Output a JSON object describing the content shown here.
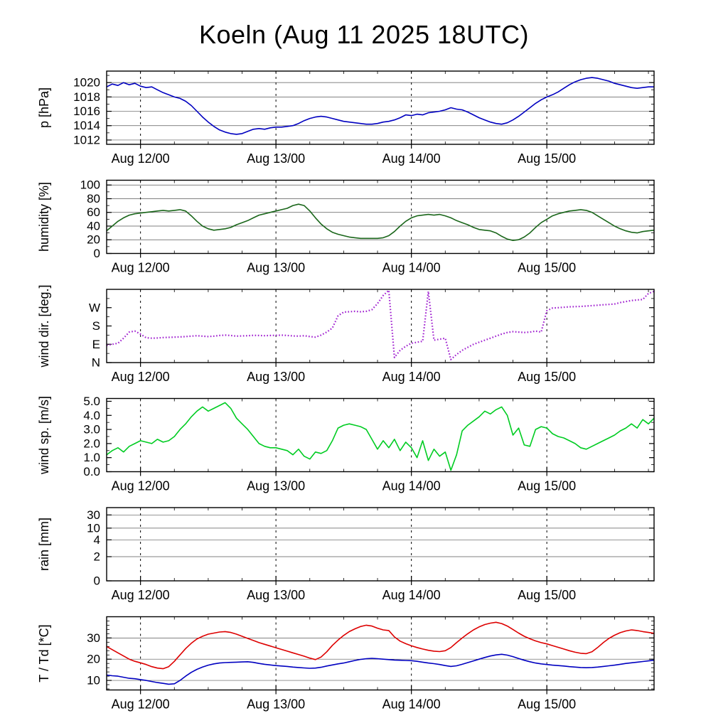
{
  "title": "Koeln (Aug 11 2025 18UTC)",
  "x_axis": {
    "xlim": [
      0,
      97
    ],
    "minor_step": 6,
    "ticks": [
      {
        "v": 6,
        "label": "Aug 12/00"
      },
      {
        "v": 30,
        "label": "Aug 13/00"
      },
      {
        "v": 54,
        "label": "Aug 14/00"
      },
      {
        "v": 78,
        "label": "Aug 15/00"
      }
    ]
  },
  "chart_data": [
    {
      "type": "line",
      "name": "pressure",
      "ylabel": "p [hPa]",
      "ylim": [
        1011.4,
        1021.6
      ],
      "minor_y_step": 1,
      "grid": true,
      "yticks": [
        {
          "v": 1012,
          "label": "1012"
        },
        {
          "v": 1014,
          "label": "1014"
        },
        {
          "v": 1016,
          "label": "1016"
        },
        {
          "v": 1018,
          "label": "1018"
        },
        {
          "v": 1020,
          "label": "1020"
        }
      ],
      "series": [
        {
          "name": "pressure",
          "color": "#0000c0",
          "style": "line",
          "values": [
            1019.4,
            1019.8,
            1019.6,
            1020.0,
            1019.7,
            1019.9,
            1019.5,
            1019.3,
            1019.4,
            1019.0,
            1018.6,
            1018.3,
            1018.0,
            1017.8,
            1017.4,
            1016.8,
            1016.0,
            1015.2,
            1014.5,
            1013.9,
            1013.4,
            1013.1,
            1012.9,
            1012.8,
            1012.9,
            1013.2,
            1013.5,
            1013.6,
            1013.5,
            1013.7,
            1013.8,
            1013.8,
            1013.9,
            1014.0,
            1014.3,
            1014.7,
            1015.0,
            1015.2,
            1015.3,
            1015.2,
            1015.0,
            1014.8,
            1014.6,
            1014.5,
            1014.4,
            1014.3,
            1014.2,
            1014.2,
            1014.3,
            1014.5,
            1014.6,
            1014.8,
            1015.1,
            1015.5,
            1015.4,
            1015.6,
            1015.5,
            1015.8,
            1015.9,
            1016.0,
            1016.2,
            1016.5,
            1016.3,
            1016.2,
            1015.9,
            1015.5,
            1015.1,
            1014.8,
            1014.5,
            1014.3,
            1014.2,
            1014.4,
            1014.8,
            1015.3,
            1015.9,
            1016.5,
            1017.1,
            1017.6,
            1018.0,
            1018.3,
            1018.7,
            1019.2,
            1019.7,
            1020.1,
            1020.4,
            1020.6,
            1020.7,
            1020.6,
            1020.4,
            1020.2,
            1019.9,
            1019.7,
            1019.5,
            1019.3,
            1019.2,
            1019.3,
            1019.4,
            1019.4
          ]
        }
      ]
    },
    {
      "type": "line",
      "name": "humidity",
      "ylabel": "humidity [%]",
      "ylim": [
        0,
        107
      ],
      "minor_y_step": 10,
      "grid": true,
      "yticks": [
        {
          "v": 0,
          "label": "0"
        },
        {
          "v": 20,
          "label": "20"
        },
        {
          "v": 40,
          "label": "40"
        },
        {
          "v": 60,
          "label": "60"
        },
        {
          "v": 80,
          "label": "80"
        },
        {
          "v": 100,
          "label": "100"
        }
      ],
      "series": [
        {
          "name": "humidity",
          "color": "#1a661a",
          "style": "line",
          "values": [
            33,
            40,
            47,
            52,
            56,
            58,
            59,
            60,
            61,
            62,
            63,
            62,
            63,
            64,
            62,
            55,
            47,
            40,
            36,
            34,
            35,
            36,
            38,
            42,
            45,
            48,
            52,
            56,
            58,
            60,
            62,
            64,
            66,
            70,
            72,
            70,
            62,
            52,
            43,
            36,
            31,
            28,
            26,
            24,
            23,
            22,
            22,
            22,
            22,
            23,
            26,
            32,
            40,
            47,
            52,
            55,
            56,
            57,
            56,
            57,
            55,
            52,
            48,
            45,
            42,
            38,
            35,
            34,
            33,
            30,
            25,
            21,
            19,
            20,
            24,
            30,
            38,
            45,
            50,
            55,
            58,
            60,
            62,
            63,
            64,
            63,
            60,
            55,
            50,
            45,
            40,
            36,
            33,
            31,
            30,
            32,
            33,
            34
          ]
        }
      ]
    },
    {
      "type": "line",
      "name": "wind-direction",
      "ylabel": "wind dir. [deg.]",
      "ylim": [
        0,
        360
      ],
      "minor_y_step": 45,
      "grid": false,
      "yticks": [
        {
          "v": 0,
          "label": "N"
        },
        {
          "v": 90,
          "label": "E"
        },
        {
          "v": 180,
          "label": "S"
        },
        {
          "v": 270,
          "label": "W"
        }
      ],
      "series": [
        {
          "name": "wind_direction",
          "color": "#a020d0",
          "style": "dotted",
          "values": [
            85,
            90,
            95,
            120,
            150,
            155,
            140,
            122,
            120,
            121,
            123,
            124,
            125,
            126,
            128,
            130,
            132,
            130,
            128,
            130,
            133,
            135,
            133,
            130,
            131,
            132,
            134,
            133,
            132,
            133,
            134,
            135,
            133,
            131,
            130,
            132,
            128,
            125,
            135,
            150,
            170,
            230,
            248,
            250,
            252,
            250,
            252,
            260,
            290,
            330,
            355,
            25,
            60,
            80,
            95,
            100,
            105,
            350,
            110,
            115,
            120,
            15,
            40,
            60,
            75,
            90,
            100,
            110,
            120,
            130,
            140,
            148,
            152,
            150,
            148,
            150,
            155,
            150,
            255,
            268,
            270,
            272,
            274,
            275,
            276,
            278,
            280,
            282,
            284,
            286,
            288,
            295,
            300,
            305,
            308,
            310,
            340,
            350
          ]
        }
      ]
    },
    {
      "type": "line",
      "name": "wind-speed",
      "ylabel": "wind sp. [m/s]",
      "ylim": [
        0,
        5.2
      ],
      "minor_y_step": 0.5,
      "grid": false,
      "yticks": [
        {
          "v": 0,
          "label": "0.0"
        },
        {
          "v": 1,
          "label": "1.0"
        },
        {
          "v": 2,
          "label": "2.0"
        },
        {
          "v": 3,
          "label": "3.0"
        },
        {
          "v": 4,
          "label": "4.0"
        },
        {
          "v": 5,
          "label": "5.0"
        }
      ],
      "series": [
        {
          "name": "wind_speed",
          "color": "#00cc22",
          "style": "line",
          "values": [
            1.2,
            1.5,
            1.7,
            1.4,
            1.8,
            2.0,
            2.2,
            2.1,
            2.0,
            2.3,
            2.1,
            2.2,
            2.5,
            3.0,
            3.4,
            3.9,
            4.3,
            4.6,
            4.3,
            4.5,
            4.7,
            4.9,
            4.5,
            3.8,
            3.4,
            3.0,
            2.5,
            2.0,
            1.8,
            1.7,
            1.7,
            1.6,
            1.5,
            1.2,
            1.6,
            1.1,
            0.9,
            1.4,
            1.3,
            1.5,
            2.2,
            3.1,
            3.3,
            3.4,
            3.3,
            3.2,
            3.0,
            2.3,
            1.6,
            2.2,
            1.7,
            2.3,
            1.5,
            2.1,
            1.7,
            1.0,
            2.2,
            0.8,
            1.6,
            1.1,
            1.4,
            0.1,
            1.2,
            2.9,
            3.3,
            3.6,
            3.9,
            4.3,
            4.1,
            4.4,
            4.6,
            4.0,
            2.6,
            3.1,
            1.9,
            1.8,
            3.0,
            3.2,
            3.1,
            2.7,
            2.5,
            2.4,
            2.2,
            2.0,
            1.7,
            1.6,
            1.8,
            2.0,
            2.2,
            2.4,
            2.6,
            2.9,
            3.1,
            3.4,
            3.1,
            3.7,
            3.4,
            3.8
          ]
        }
      ]
    },
    {
      "type": "line",
      "name": "rain",
      "ylabel": "rain [mm]",
      "ylim": [
        0,
        1
      ],
      "minor_y_step": 0,
      "grid": true,
      "yticks": [
        {
          "v": 0,
          "label": "0"
        },
        {
          "v": 0.33,
          "label": "2"
        },
        {
          "v": 0.56,
          "label": "4"
        },
        {
          "v": 0.72,
          "label": "10"
        },
        {
          "v": 0.9,
          "label": "30"
        }
      ],
      "series": []
    },
    {
      "type": "line",
      "name": "temperature-dewpoint",
      "ylabel": "T / Td [*C]",
      "ylim": [
        5.5,
        40
      ],
      "minor_y_step": 2,
      "grid": true,
      "yticks": [
        {
          "v": 10,
          "label": "10"
        },
        {
          "v": 20,
          "label": "20"
        },
        {
          "v": 30,
          "label": "30"
        }
      ],
      "series": [
        {
          "name": "temperature",
          "color": "#dd0000",
          "style": "line",
          "values": [
            26,
            24.5,
            23,
            21.5,
            20,
            19,
            18.3,
            17.5,
            16.5,
            15.8,
            15.5,
            16.5,
            19,
            22,
            25,
            27.5,
            29.5,
            30.8,
            31.8,
            32.3,
            32.8,
            33,
            32.6,
            31.8,
            30.8,
            29.8,
            28.8,
            27.8,
            27,
            26.2,
            25.4,
            24.6,
            23.8,
            23,
            22.2,
            21.4,
            20.5,
            19.8,
            21,
            23.5,
            26.5,
            29,
            31.2,
            33,
            34.3,
            35.4,
            36,
            35.6,
            34.6,
            33.8,
            33.5,
            30.5,
            28.5,
            27.3,
            26.3,
            25.5,
            24.8,
            24.2,
            23.8,
            23.6,
            24,
            25.5,
            27.8,
            30,
            32,
            33.8,
            35.2,
            36.3,
            37,
            37.4,
            36.8,
            35.6,
            34,
            32.3,
            30.8,
            29.6,
            28.6,
            27.8,
            27.2,
            26.4,
            25.6,
            24.8,
            24,
            23.3,
            22.8,
            22.6,
            23.5,
            25.5,
            27.8,
            29.8,
            31.3,
            32.5,
            33.3,
            33.8,
            33.5,
            33,
            32.6,
            32.2
          ]
        },
        {
          "name": "dewpoint",
          "color": "#0000c0",
          "style": "line",
          "values": [
            12.5,
            12.2,
            12,
            11.5,
            11,
            10.8,
            10.4,
            10,
            9.5,
            9,
            8.6,
            8.2,
            8.4,
            10,
            12,
            13.8,
            15.2,
            16.3,
            17.2,
            17.8,
            18.2,
            18.4,
            18.5,
            18.6,
            18.7,
            18.8,
            18.5,
            18,
            17.6,
            17.3,
            17,
            16.8,
            16.6,
            16.3,
            16.1,
            15.9,
            15.7,
            15.8,
            16.2,
            16.8,
            17.3,
            17.8,
            18.2,
            18.8,
            19.4,
            19.9,
            20.2,
            20.4,
            20.2,
            20,
            19.8,
            19.6,
            19.5,
            19.4,
            19.3,
            19,
            18.6,
            18.2,
            17.9,
            17.5,
            17,
            16.6,
            16.9,
            17.6,
            18.4,
            19.2,
            20,
            20.8,
            21.5,
            22,
            22.3,
            21.9,
            21.2,
            20.3,
            19.5,
            18.8,
            18.2,
            17.8,
            17.5,
            17.2,
            17,
            16.8,
            16.5,
            16.3,
            16.1,
            16,
            16.1,
            16.3,
            16.6,
            16.9,
            17.2,
            17.6,
            18,
            18.3,
            18.6,
            18.9,
            19.2,
            19.5
          ]
        }
      ]
    }
  ]
}
